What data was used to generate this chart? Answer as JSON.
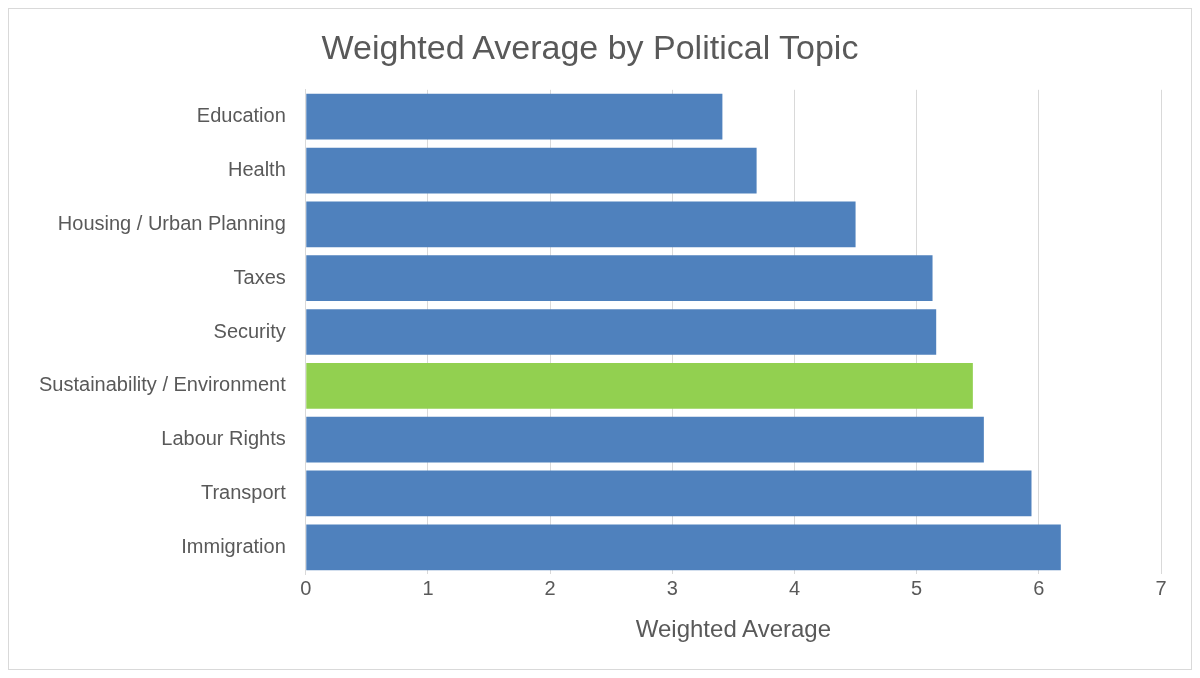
{
  "chart_data": {
    "type": "bar",
    "orientation": "horizontal",
    "title": "Weighted Average by Political Topic",
    "xlabel": "Weighted Average",
    "categories": [
      "Education",
      "Health",
      "Housing / Urban Planning",
      "Taxes",
      "Security",
      "Sustainability / Environment",
      "Labour Rights",
      "Transport",
      "Immigration"
    ],
    "values": [
      3.41,
      3.69,
      4.5,
      5.13,
      5.16,
      5.46,
      5.55,
      5.94,
      6.18
    ],
    "colors": [
      "#4f81bd",
      "#4f81bd",
      "#4f81bd",
      "#4f81bd",
      "#4f81bd",
      "#92d050",
      "#4f81bd",
      "#4f81bd",
      "#4f81bd"
    ],
    "xlim": [
      0,
      7
    ],
    "xticks": [
      0,
      1,
      2,
      3,
      4,
      5,
      6,
      7
    ],
    "grid": "x",
    "legend": false
  }
}
